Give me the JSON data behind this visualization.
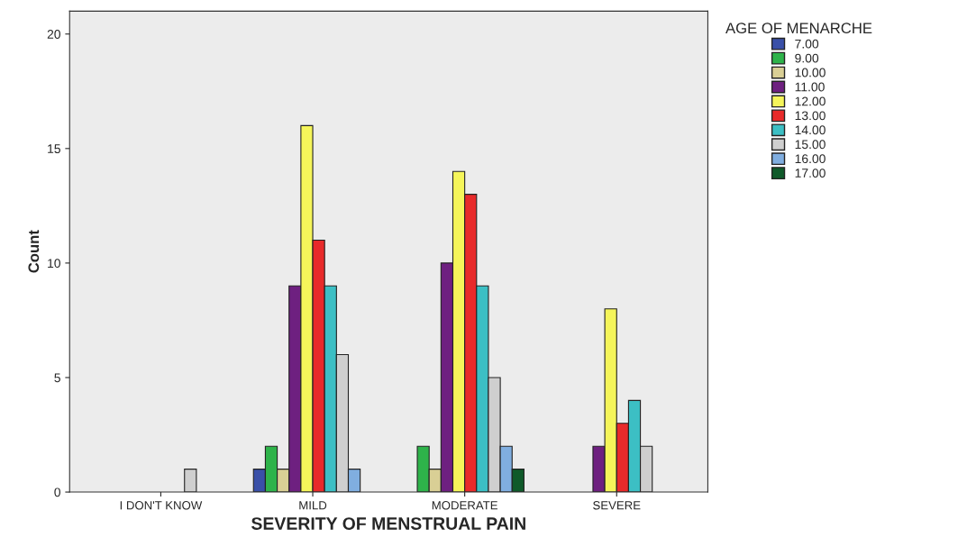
{
  "chart_data": {
    "type": "bar",
    "xlabel": "SEVERITY OF MENSTRUAL PAIN",
    "ylabel": "Count",
    "legend_title": "AGE OF MENARCHE",
    "categories": [
      "I DON'T KNOW",
      "MILD",
      "MODERATE",
      "SEVERE"
    ],
    "series": [
      {
        "name": "7.00",
        "color": "#3a50a8",
        "values": [
          null,
          1,
          null,
          null
        ]
      },
      {
        "name": "9.00",
        "color": "#2eb34a",
        "values": [
          null,
          2,
          2,
          null
        ]
      },
      {
        "name": "10.00",
        "color": "#d9cf95",
        "values": [
          null,
          1,
          1,
          null
        ]
      },
      {
        "name": "11.00",
        "color": "#6e2080",
        "values": [
          null,
          9,
          10,
          2
        ]
      },
      {
        "name": "12.00",
        "color": "#f5f55a",
        "values": [
          null,
          16,
          14,
          8
        ]
      },
      {
        "name": "13.00",
        "color": "#e82a2a",
        "values": [
          null,
          11,
          13,
          3
        ]
      },
      {
        "name": "14.00",
        "color": "#3cbfc4",
        "values": [
          null,
          9,
          9,
          4
        ]
      },
      {
        "name": "15.00",
        "color": "#cfcfcf",
        "values": [
          1,
          6,
          5,
          2
        ]
      },
      {
        "name": "16.00",
        "color": "#80aee0",
        "values": [
          null,
          1,
          2,
          null
        ]
      },
      {
        "name": "17.00",
        "color": "#0f5a2a",
        "values": [
          null,
          null,
          1,
          null
        ]
      }
    ],
    "ylim": [
      0,
      21
    ],
    "yticks": [
      0,
      5,
      10,
      15,
      20
    ],
    "grid": false,
    "legend": "right"
  }
}
